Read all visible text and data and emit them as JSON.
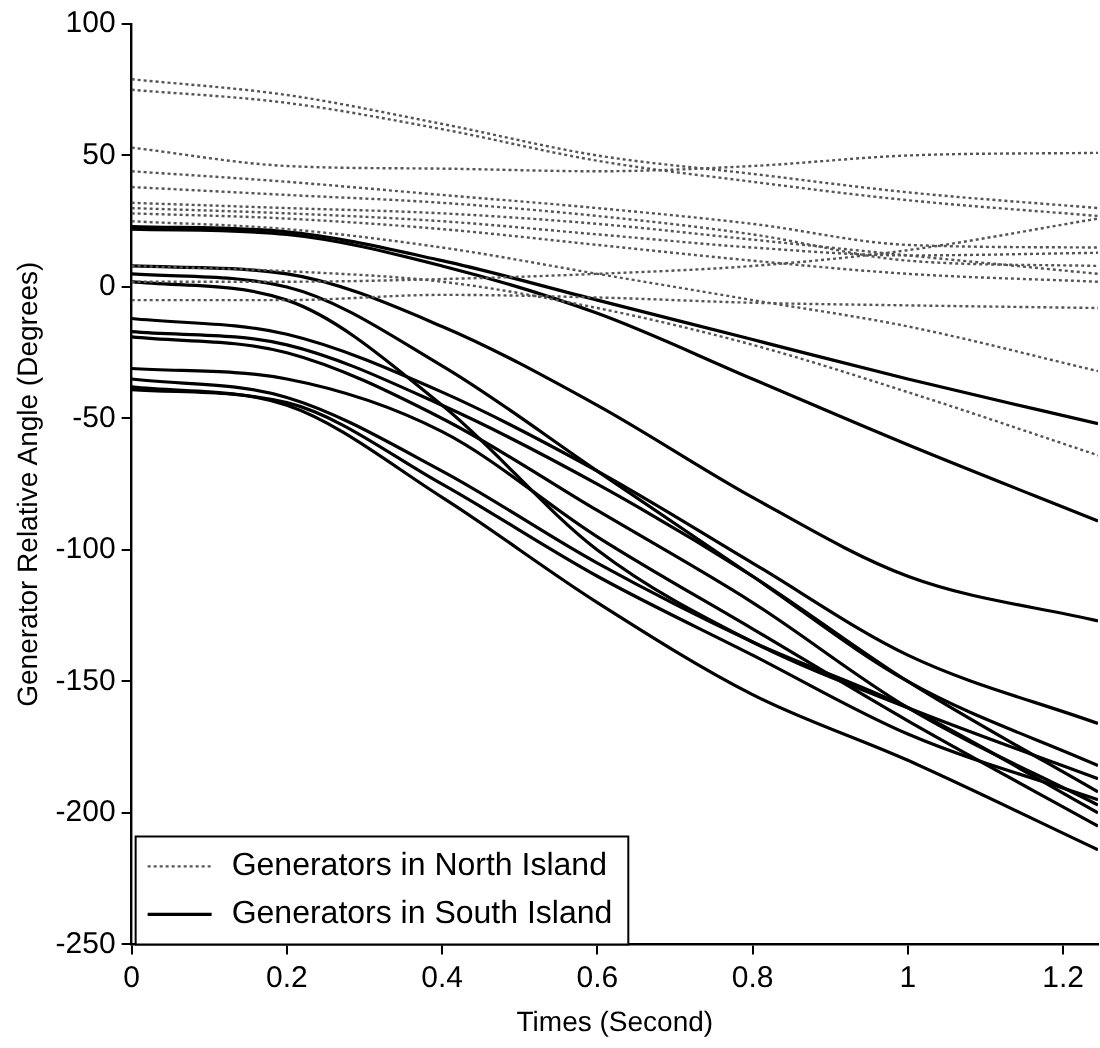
{
  "chart_data": {
    "type": "line",
    "xlabel": "Times (Second)",
    "ylabel": "Generator Relative Angle (Degrees)",
    "x": [
      0,
      0.2,
      0.4,
      0.6,
      0.8,
      1.0,
      1.245
    ],
    "xlim": [
      0,
      1.245
    ],
    "xticks": [
      0,
      0.2,
      0.4,
      0.6,
      0.8,
      1,
      1.2
    ],
    "ylim": [
      -250,
      100
    ],
    "yticks": [
      -250,
      -200,
      -150,
      -100,
      -50,
      0,
      50,
      100
    ],
    "grid": false,
    "legend": "bottom left",
    "marker": "none",
    "series": [
      {
        "name": "Generators in North Island",
        "color": "#555555",
        "line_style": "dotted",
        "values": [
          79,
          73,
          62,
          50,
          43,
          36,
          30
        ]
      },
      {
        "color": "#555555",
        "line_style": "dotted",
        "values": [
          75,
          70,
          60,
          48,
          40,
          33,
          27
        ]
      },
      {
        "color": "#555555",
        "line_style": "dotted",
        "values": [
          53,
          46,
          45,
          44,
          46,
          50,
          51
        ]
      },
      {
        "color": "#555555",
        "line_style": "dotted",
        "values": [
          44,
          40,
          35,
          30,
          24,
          16,
          15
        ]
      },
      {
        "color": "#555555",
        "line_style": "dotted",
        "values": [
          38,
          35,
          32,
          27,
          20,
          10,
          8
        ]
      },
      {
        "color": "#555555",
        "line_style": "dotted",
        "values": [
          32,
          30,
          28,
          24,
          18,
          12,
          5
        ]
      },
      {
        "color": "#555555",
        "line_style": "dotted",
        "values": [
          28,
          26,
          22,
          16,
          10,
          5,
          2
        ]
      },
      {
        "color": "#555555",
        "line_style": "dotted",
        "values": [
          25,
          22,
          15,
          5,
          -5,
          -15,
          -32
        ]
      },
      {
        "color": "#555555",
        "line_style": "dotted",
        "values": [
          8,
          6,
          2,
          -8,
          -22,
          -40,
          -64
        ]
      },
      {
        "color": "#555555",
        "line_style": "dotted",
        "values": [
          2,
          2,
          3,
          5,
          8,
          14,
          26
        ]
      },
      {
        "color": "#555555",
        "line_style": "dotted",
        "values": [
          -5,
          -5,
          -3,
          -4,
          -6,
          -7,
          -8
        ]
      },
      {
        "color": "#555555",
        "line_style": "dotted",
        "values": [
          30,
          28,
          25,
          20,
          15,
          12,
          13
        ]
      },
      {
        "name": "Generators in South Island",
        "color": "#000000",
        "line_style": "solid",
        "values": [
          23,
          21,
          10,
          -5,
          -20,
          -35,
          -52
        ]
      },
      {
        "color": "#000000",
        "line_style": "solid",
        "values": [
          22,
          20,
          8,
          -10,
          -35,
          -60,
          -89
        ]
      },
      {
        "color": "#000000",
        "line_style": "solid",
        "values": [
          8,
          5,
          -15,
          -45,
          -80,
          -110,
          -127
        ]
      },
      {
        "color": "#000000",
        "line_style": "solid",
        "values": [
          5,
          0,
          -30,
          -70,
          -110,
          -150,
          -182
        ]
      },
      {
        "color": "#000000",
        "line_style": "solid",
        "values": [
          2,
          -5,
          -45,
          -100,
          -135,
          -160,
          -187
        ]
      },
      {
        "color": "#000000",
        "line_style": "solid",
        "values": [
          -12,
          -18,
          -40,
          -70,
          -105,
          -140,
          -166
        ]
      },
      {
        "color": "#000000",
        "line_style": "solid",
        "values": [
          -17,
          -22,
          -45,
          -75,
          -110,
          -150,
          -192
        ]
      },
      {
        "color": "#000000",
        "line_style": "solid",
        "values": [
          -19,
          -25,
          -50,
          -85,
          -120,
          -160,
          -197
        ]
      },
      {
        "color": "#000000",
        "line_style": "solid",
        "values": [
          -31,
          -35,
          -55,
          -95,
          -130,
          -165,
          -205
        ]
      },
      {
        "color": "#000000",
        "line_style": "solid",
        "values": [
          -35,
          -42,
          -70,
          -105,
          -135,
          -160,
          -200
        ]
      },
      {
        "color": "#000000",
        "line_style": "solid",
        "values": [
          -38,
          -45,
          -80,
          -120,
          -155,
          -180,
          -214
        ]
      },
      {
        "color": "#000000",
        "line_style": "solid",
        "values": [
          -39,
          -44,
          -75,
          -110,
          -140,
          -170,
          -195
        ]
      }
    ]
  }
}
